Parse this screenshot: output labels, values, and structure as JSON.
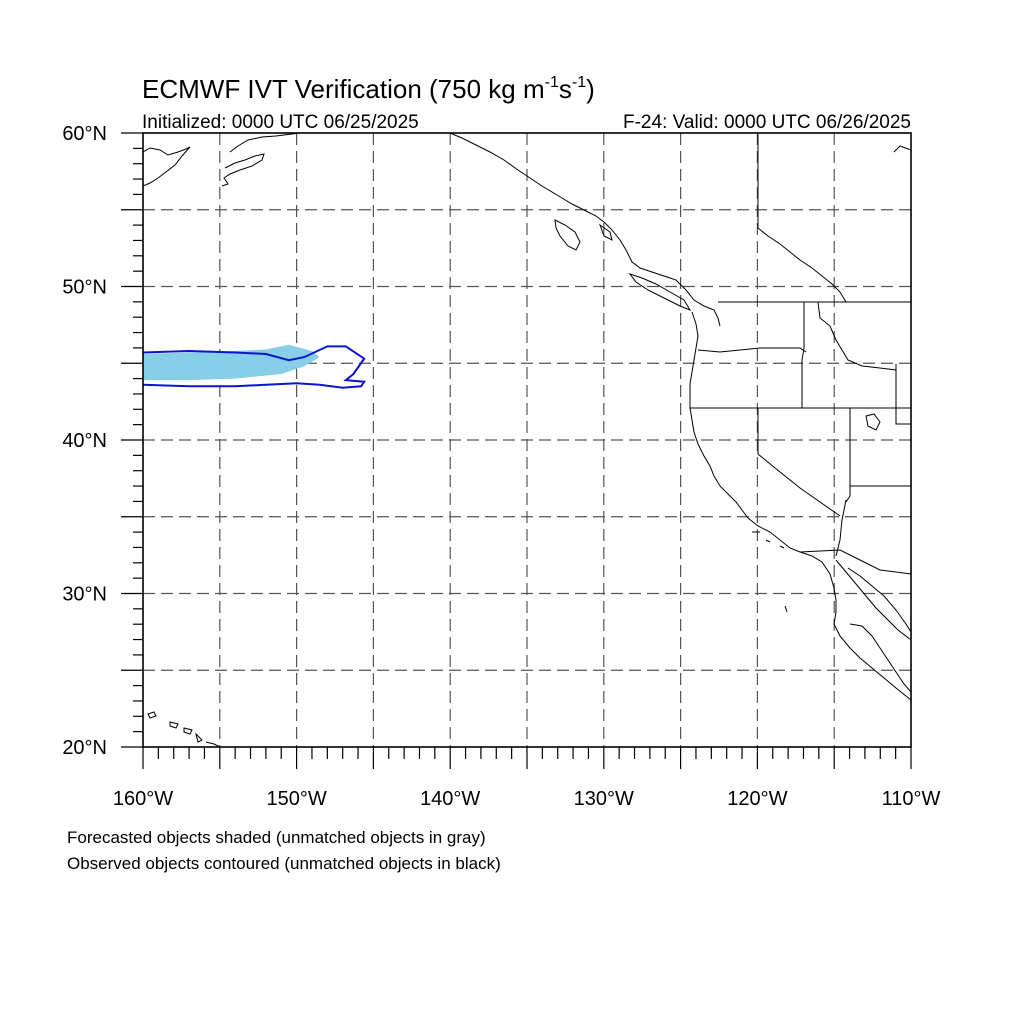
{
  "header": {
    "title_main": "ECMWF IVT Verification (750 kg m",
    "title_sup1": "-1",
    "title_mid": "s",
    "title_sup2": "-1",
    "title_end": ")",
    "initialized": "Initialized: 0000 UTC 06/25/2025",
    "valid": "F-24: Valid: 0000 UTC 06/26/2025"
  },
  "map": {
    "projection": "cylindrical-equidistant",
    "lon_range": [
      -160,
      -110
    ],
    "lat_range": [
      20,
      60
    ],
    "grid": "dashed",
    "grid_spacing_deg": 5,
    "lat_labels": [
      "60°N",
      "50°N",
      "40°N",
      "30°N",
      "20°N"
    ],
    "lon_labels": [
      "160°W",
      "150°W",
      "140°W",
      "130°W",
      "120°W",
      "110°W"
    ],
    "forecast_object": {
      "color": "#87cee8",
      "outline_lonlat": [
        [
          -160,
          45.6
        ],
        [
          -157,
          45.7
        ],
        [
          -154,
          45.8
        ],
        [
          -152,
          45.9
        ],
        [
          -150.5,
          46.2
        ],
        [
          -149,
          45.8
        ],
        [
          -148.5,
          45.4
        ],
        [
          -149.5,
          44.8
        ],
        [
          -151,
          44.3
        ],
        [
          -154,
          44.0
        ],
        [
          -157,
          43.9
        ],
        [
          -160,
          43.9
        ]
      ]
    },
    "observed_object": {
      "color": "#0a14d2",
      "outline_lonlat": [
        [
          -160,
          45.7
        ],
        [
          -157,
          45.8
        ],
        [
          -154,
          45.7
        ],
        [
          -152,
          45.6
        ],
        [
          -150.5,
          45.2
        ],
        [
          -149.5,
          45.4
        ],
        [
          -148,
          46.1
        ],
        [
          -146.8,
          46.1
        ],
        [
          -145.6,
          45.3
        ],
        [
          -146.3,
          44.3
        ],
        [
          -146.8,
          43.9
        ],
        [
          -145.6,
          43.8
        ],
        [
          -145.8,
          43.5
        ],
        [
          -147,
          43.4
        ],
        [
          -148.5,
          43.6
        ],
        [
          -150,
          43.7
        ],
        [
          -152,
          43.6
        ],
        [
          -154,
          43.5
        ],
        [
          -157,
          43.5
        ],
        [
          -160,
          43.6
        ]
      ]
    }
  },
  "footer": {
    "line1": "Forecasted objects shaded (unmatched objects in gray)",
    "line2": "Observed objects contoured (unmatched objects in black)"
  }
}
